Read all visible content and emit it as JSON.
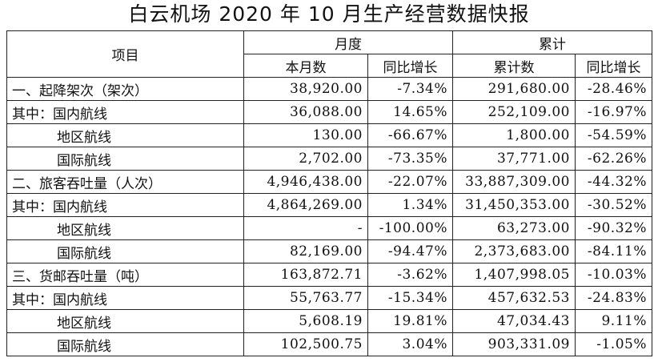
{
  "title": "白云机场 2020 年 10 月生产经营数据快报",
  "header": {
    "item": "项目",
    "monthly": "月度",
    "cumulative": "累计",
    "month_value": "本月数",
    "month_yoy": "同比增长",
    "cum_value": "累计数",
    "cum_yoy": "同比增长"
  },
  "rows": [
    {
      "label": "一、起降架次（架次）",
      "month": "38,920.00",
      "month_yoy": "-7.34%",
      "cum": "291,680.00",
      "cum_yoy": "-28.46%"
    },
    {
      "label": "其中：国内航线",
      "month": "36,088.00",
      "month_yoy": "14.65%",
      "cum": "252,109.00",
      "cum_yoy": "-16.97%"
    },
    {
      "label": "地区航线",
      "month": "130.00",
      "month_yoy": "-66.67%",
      "cum": "1,800.00",
      "cum_yoy": "-54.59%"
    },
    {
      "label": "国际航线",
      "month": "2,702.00",
      "month_yoy": "-73.35%",
      "cum": "37,771.00",
      "cum_yoy": "-62.26%"
    },
    {
      "label": "二、旅客吞吐量（人次）",
      "month": "4,946,438.00",
      "month_yoy": "-22.07%",
      "cum": "33,887,309.00",
      "cum_yoy": "-44.32%"
    },
    {
      "label": "其中：国内航线",
      "month": "4,864,269.00",
      "month_yoy": "1.34%",
      "cum": "31,450,353.00",
      "cum_yoy": "-30.52%"
    },
    {
      "label": "地区航线",
      "month": "-",
      "month_yoy": "-100.00%",
      "cum": "63,273.00",
      "cum_yoy": "-90.32%"
    },
    {
      "label": "国际航线",
      "month": "82,169.00",
      "month_yoy": "-94.47%",
      "cum": "2,373,683.00",
      "cum_yoy": "-84.11%"
    },
    {
      "label": "三、货邮吞吐量（吨）",
      "month": "163,872.71",
      "month_yoy": "-3.62%",
      "cum": "1,407,998.05",
      "cum_yoy": "-10.03%"
    },
    {
      "label": "其中：国内航线",
      "month": "55,763.77",
      "month_yoy": "-15.34%",
      "cum": "457,632.53",
      "cum_yoy": "-24.83%"
    },
    {
      "label": "地区航线",
      "month": "5,608.19",
      "month_yoy": "19.81%",
      "cum": "47,034.43",
      "cum_yoy": "9.11%"
    },
    {
      "label": "国际航线",
      "month": "102,500.75",
      "month_yoy": "3.04%",
      "cum": "903,331.09",
      "cum_yoy": "-1.05%"
    }
  ]
}
